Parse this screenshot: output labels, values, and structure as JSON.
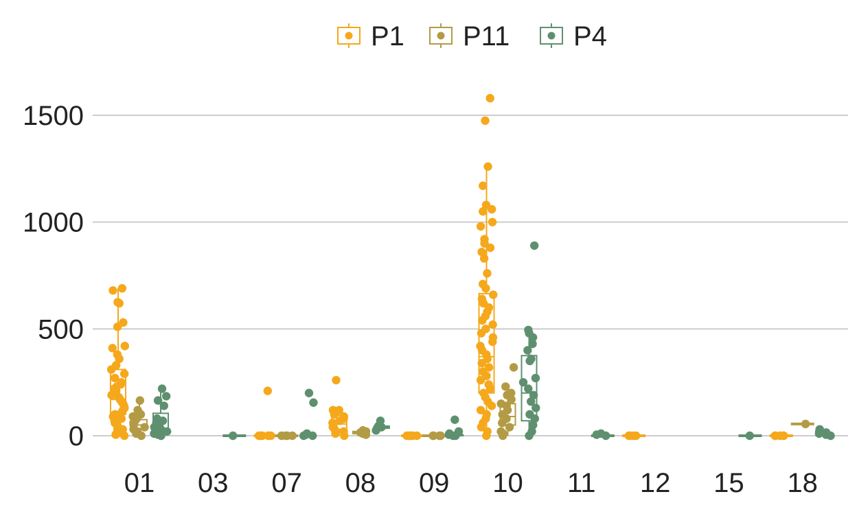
{
  "chart_data": {
    "type": "box",
    "categories": [
      "01",
      "03",
      "07",
      "08",
      "09",
      "10",
      "11",
      "12",
      "15",
      "18"
    ],
    "ylim": [
      -100,
      1700
    ],
    "yticks": [
      0,
      500,
      1000,
      1500
    ],
    "grid": true,
    "legend_position": "top",
    "series": [
      {
        "name": "P1",
        "color": "#F5A81C",
        "boxes": [
          {
            "category": "01",
            "q1": 100,
            "median": 170,
            "q3": 310,
            "whisker_low": 0,
            "whisker_high": 690
          },
          {
            "category": "03",
            "q1": 0,
            "median": 0,
            "q3": 0,
            "whisker_low": 0,
            "whisker_high": 0,
            "empty": true
          },
          {
            "category": "07",
            "q1": 0,
            "median": 0,
            "q3": 0,
            "whisker_low": 0,
            "whisker_high": 0
          },
          {
            "category": "08",
            "q1": 30,
            "median": 55,
            "q3": 95,
            "whisker_low": 0,
            "whisker_high": 120
          },
          {
            "category": "09",
            "q1": 0,
            "median": 0,
            "q3": 0,
            "whisker_low": 0,
            "whisker_high": 0
          },
          {
            "category": "10",
            "q1": 200,
            "median": 370,
            "q3": 665,
            "whisker_low": 0,
            "whisker_high": 1260
          },
          {
            "category": "11",
            "q1": 0,
            "median": 0,
            "q3": 0,
            "whisker_low": 0,
            "whisker_high": 0,
            "empty": true
          },
          {
            "category": "12",
            "q1": 0,
            "median": 0,
            "q3": 0,
            "whisker_low": 0,
            "whisker_high": 0
          },
          {
            "category": "15",
            "q1": 0,
            "median": 0,
            "q3": 0,
            "whisker_low": 0,
            "whisker_high": 0,
            "empty": true
          },
          {
            "category": "18",
            "q1": 0,
            "median": 0,
            "q3": 0,
            "whisker_low": 0,
            "whisker_high": 0
          }
        ],
        "points": {
          "01": [
            0,
            5,
            10,
            15,
            20,
            30,
            40,
            50,
            60,
            70,
            80,
            90,
            100,
            110,
            120,
            130,
            140,
            150,
            160,
            170,
            180,
            190,
            200,
            210,
            220,
            230,
            240,
            250,
            270,
            290,
            310,
            330,
            360,
            380,
            410,
            420,
            510,
            530,
            620,
            625,
            680,
            690
          ],
          "07": [
            0,
            0,
            0,
            0,
            0,
            0,
            210
          ],
          "08": [
            0,
            10,
            20,
            30,
            40,
            50,
            60,
            70,
            80,
            90,
            100,
            120,
            120,
            260
          ],
          "09": [
            0,
            0,
            0,
            0,
            0,
            0
          ],
          "10": [
            0,
            20,
            40,
            60,
            80,
            100,
            120,
            140,
            160,
            180,
            200,
            220,
            240,
            260,
            280,
            300,
            320,
            340,
            360,
            380,
            400,
            420,
            440,
            460,
            480,
            500,
            520,
            540,
            560,
            580,
            600,
            620,
            640,
            660,
            690,
            710,
            760,
            830,
            860,
            880,
            900,
            920,
            980,
            1000,
            1050,
            1060,
            1080,
            1170,
            1260,
            1475,
            1580
          ],
          "12": [
            0,
            0,
            0,
            0
          ],
          "18": [
            0,
            0,
            0,
            0,
            0
          ]
        }
      },
      {
        "name": "P11",
        "color": "#B39B45",
        "boxes": [
          {
            "category": "01",
            "q1": 30,
            "median": 50,
            "q3": 75,
            "whisker_low": 0,
            "whisker_high": 165
          },
          {
            "category": "03",
            "q1": 0,
            "median": 0,
            "q3": 0,
            "whisker_low": 0,
            "whisker_high": 0,
            "empty": true
          },
          {
            "category": "07",
            "q1": 0,
            "median": 0,
            "q3": 0,
            "whisker_low": 0,
            "whisker_high": 0
          },
          {
            "category": "08",
            "q1": 10,
            "median": 15,
            "q3": 20,
            "whisker_low": 5,
            "whisker_high": 25
          },
          {
            "category": "09",
            "q1": 0,
            "median": 0,
            "q3": 0,
            "whisker_low": 0,
            "whisker_high": 0
          },
          {
            "category": "10",
            "q1": 50,
            "median": 90,
            "q3": 150,
            "whisker_low": 0,
            "whisker_high": 230
          },
          {
            "category": "11",
            "q1": 0,
            "median": 0,
            "q3": 0,
            "whisker_low": 0,
            "whisker_high": 0,
            "empty": true
          },
          {
            "category": "12",
            "q1": 0,
            "median": 0,
            "q3": 0,
            "whisker_low": 0,
            "whisker_high": 0,
            "empty": true
          },
          {
            "category": "15",
            "q1": 0,
            "median": 0,
            "q3": 0,
            "whisker_low": 0,
            "whisker_high": 0,
            "empty": true
          },
          {
            "category": "18",
            "q1": 55,
            "median": 55,
            "q3": 55,
            "whisker_low": 55,
            "whisker_high": 55
          }
        ],
        "points": {
          "01": [
            0,
            10,
            20,
            30,
            40,
            50,
            60,
            70,
            80,
            90,
            100,
            110,
            120,
            165
          ],
          "07": [
            0,
            0,
            0,
            0
          ],
          "08": [
            5,
            10,
            15,
            20,
            25
          ],
          "09": [
            0,
            0,
            0,
            0
          ],
          "10": [
            0,
            10,
            20,
            40,
            60,
            80,
            100,
            120,
            140,
            150,
            170,
            190,
            200,
            230,
            320
          ],
          "18": [
            55
          ]
        }
      },
      {
        "name": "P4",
        "color": "#5E9070",
        "boxes": [
          {
            "category": "01",
            "q1": 10,
            "median": 35,
            "q3": 105,
            "whisker_low": 0,
            "whisker_high": 220
          },
          {
            "category": "03",
            "q1": 0,
            "median": 0,
            "q3": 0,
            "whisker_low": 0,
            "whisker_high": 0
          },
          {
            "category": "07",
            "q1": 0,
            "median": 0,
            "q3": 5,
            "whisker_low": 0,
            "whisker_high": 10
          },
          {
            "category": "08",
            "q1": 35,
            "median": 40,
            "q3": 45,
            "whisker_low": 25,
            "whisker_high": 70
          },
          {
            "category": "09",
            "q1": 0,
            "median": 0,
            "q3": 5,
            "whisker_low": 0,
            "whisker_high": 20
          },
          {
            "category": "10",
            "q1": 70,
            "median": 200,
            "q3": 375,
            "whisker_low": 0,
            "whisker_high": 495
          },
          {
            "category": "11",
            "q1": 0,
            "median": 0,
            "q3": 0,
            "whisker_low": 0,
            "whisker_high": 10
          },
          {
            "category": "12",
            "q1": 0,
            "median": 0,
            "q3": 0,
            "whisker_low": 0,
            "whisker_high": 0,
            "empty": true
          },
          {
            "category": "15",
            "q1": 0,
            "median": 0,
            "q3": 0,
            "whisker_low": 0,
            "whisker_high": 0
          },
          {
            "category": "18",
            "q1": 0,
            "median": 5,
            "q3": 15,
            "whisker_low": 0,
            "whisker_high": 30
          }
        ],
        "points": {
          "01": [
            0,
            5,
            10,
            20,
            30,
            40,
            50,
            60,
            70,
            80,
            140,
            165,
            185,
            220
          ],
          "03": [
            0
          ],
          "07": [
            0,
            0,
            5,
            10,
            155,
            200
          ],
          "08": [
            25,
            35,
            40,
            45,
            70
          ],
          "09": [
            0,
            0,
            5,
            10,
            20,
            75
          ],
          "10": [
            0,
            20,
            50,
            80,
            100,
            130,
            160,
            190,
            220,
            250,
            270,
            350,
            360,
            400,
            430,
            460,
            480,
            495,
            890
          ],
          "11": [
            0,
            5,
            10
          ],
          "15": [
            0
          ],
          "18": [
            0,
            5,
            10,
            15,
            20,
            30
          ]
        }
      }
    ]
  }
}
